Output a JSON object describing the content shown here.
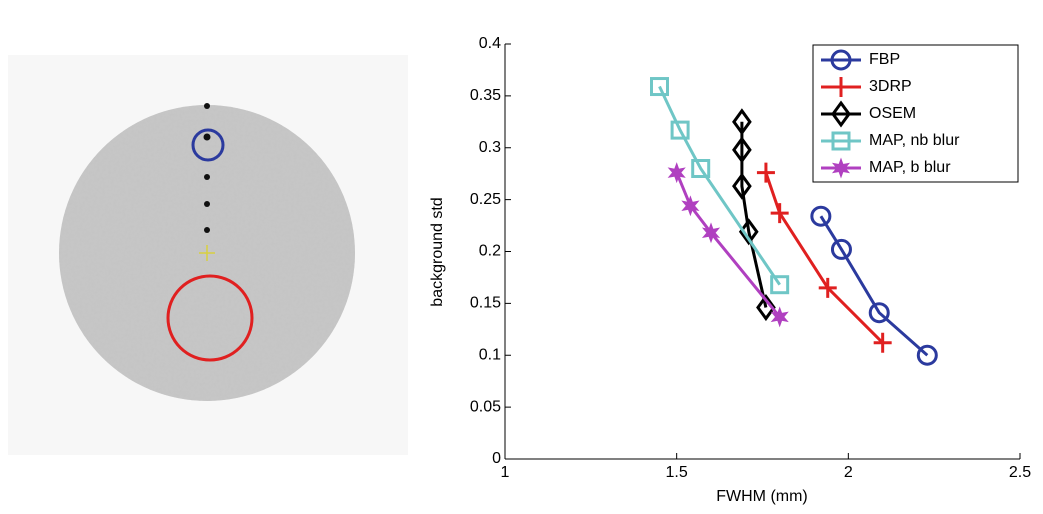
{
  "chart_data": {
    "type": "line",
    "xlabel": "FWHM (mm)",
    "ylabel": "background std",
    "xlim": [
      1,
      2.5
    ],
    "xticks": [
      1,
      1.5,
      2,
      2.5
    ],
    "ylim": [
      0,
      0.4
    ],
    "yticks": [
      0,
      0.05,
      0.1,
      0.15,
      0.2,
      0.25,
      0.3,
      0.35,
      0.4
    ],
    "legend": "upper right",
    "series": [
      {
        "name": "FBP",
        "color": "#2b3a9e",
        "marker": "circle",
        "x": [
          1.92,
          1.98,
          2.09,
          2.23
        ],
        "values": [
          0.234,
          0.202,
          0.141,
          0.1
        ]
      },
      {
        "name": "3DRP",
        "color": "#e02020",
        "marker": "plus",
        "x": [
          1.76,
          1.8,
          1.94,
          2.1
        ],
        "values": [
          0.276,
          0.237,
          0.165,
          0.112
        ]
      },
      {
        "name": "OSEM",
        "color": "#000000",
        "marker": "diamond",
        "x": [
          1.69,
          1.69,
          1.69,
          1.71,
          1.76
        ],
        "values": [
          0.325,
          0.298,
          0.263,
          0.219,
          0.146
        ]
      },
      {
        "name": "MAP, nb blur",
        "color": "#6fc6c6",
        "marker": "square",
        "x": [
          1.45,
          1.51,
          1.57,
          1.8
        ],
        "values": [
          0.359,
          0.317,
          0.28,
          0.168
        ]
      },
      {
        "name": "MAP, b blur",
        "color": "#b040c0",
        "marker": "star",
        "x": [
          1.5,
          1.54,
          1.6,
          1.8
        ],
        "values": [
          0.276,
          0.244,
          0.218,
          0.137
        ]
      }
    ]
  }
}
